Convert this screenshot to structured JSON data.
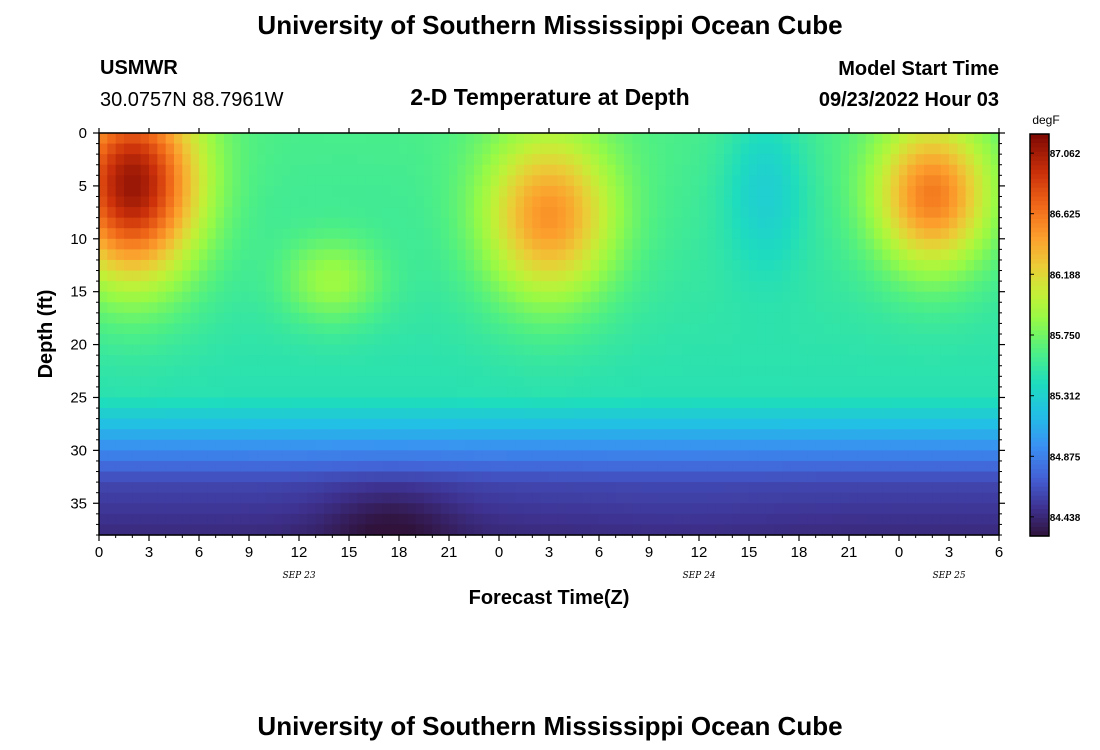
{
  "page": {
    "title": "University of Southern Mississippi Ocean Cube",
    "footer_title": "University of Southern Mississippi Ocean Cube"
  },
  "header": {
    "station": "USMWR",
    "coords": "30.0757N  88.7961W",
    "subtitle": "2-D Temperature at Depth",
    "model_label": "Model Start Time",
    "model_time": "09/23/2022 Hour 03"
  },
  "colorbar": {
    "unit": "degF",
    "labels": [
      "87.062",
      "86.625",
      "86.188",
      "85.750",
      "85.312",
      "84.875",
      "84.438"
    ]
  },
  "chart_data": {
    "type": "heatmap",
    "title": "2-D Temperature at Depth",
    "xlabel": "Forecast Time(Z)",
    "ylabel": "Depth (ft)",
    "x_ticks": [
      "0",
      "3",
      "6",
      "9",
      "12",
      "15",
      "18",
      "21",
      "0",
      "3",
      "6",
      "9",
      "12",
      "15",
      "18",
      "21",
      "0",
      "3",
      "6"
    ],
    "x_range_hours": [
      0,
      54
    ],
    "date_labels": [
      {
        "text": "SEP 23",
        "hour": 12
      },
      {
        "text": "SEP 24",
        "hour": 36
      },
      {
        "text": "SEP 25",
        "hour": 51
      }
    ],
    "y_ticks": [
      "0",
      "5",
      "10",
      "15",
      "20",
      "25",
      "30",
      "35"
    ],
    "y_range_ft": [
      0,
      38
    ],
    "color_range_degF": [
      84.3,
      87.2
    ],
    "colormap": "turbo",
    "features": [
      {
        "hour": 2,
        "depth": 5,
        "temp": 87.1,
        "spread_h": 4,
        "spread_d": 9
      },
      {
        "hour": 27,
        "depth": 8,
        "temp": 86.5,
        "spread_h": 4,
        "spread_d": 8
      },
      {
        "hour": 50,
        "depth": 6,
        "temp": 86.6,
        "spread_h": 3.5,
        "spread_d": 7
      },
      {
        "hour": 14,
        "depth": 14,
        "temp": 85.9,
        "spread_h": 3,
        "spread_d": 4
      },
      {
        "hour": 40,
        "depth": 5,
        "temp": 85.3,
        "spread_h": 2.5,
        "spread_d": 8
      },
      {
        "hour": 17.5,
        "depth": 37,
        "temp": 84.3,
        "spread_h": 4,
        "spread_d": 4
      },
      {
        "hour": 35,
        "depth": 37,
        "temp": 84.5,
        "spread_h": 6,
        "spread_d": 5
      }
    ]
  }
}
